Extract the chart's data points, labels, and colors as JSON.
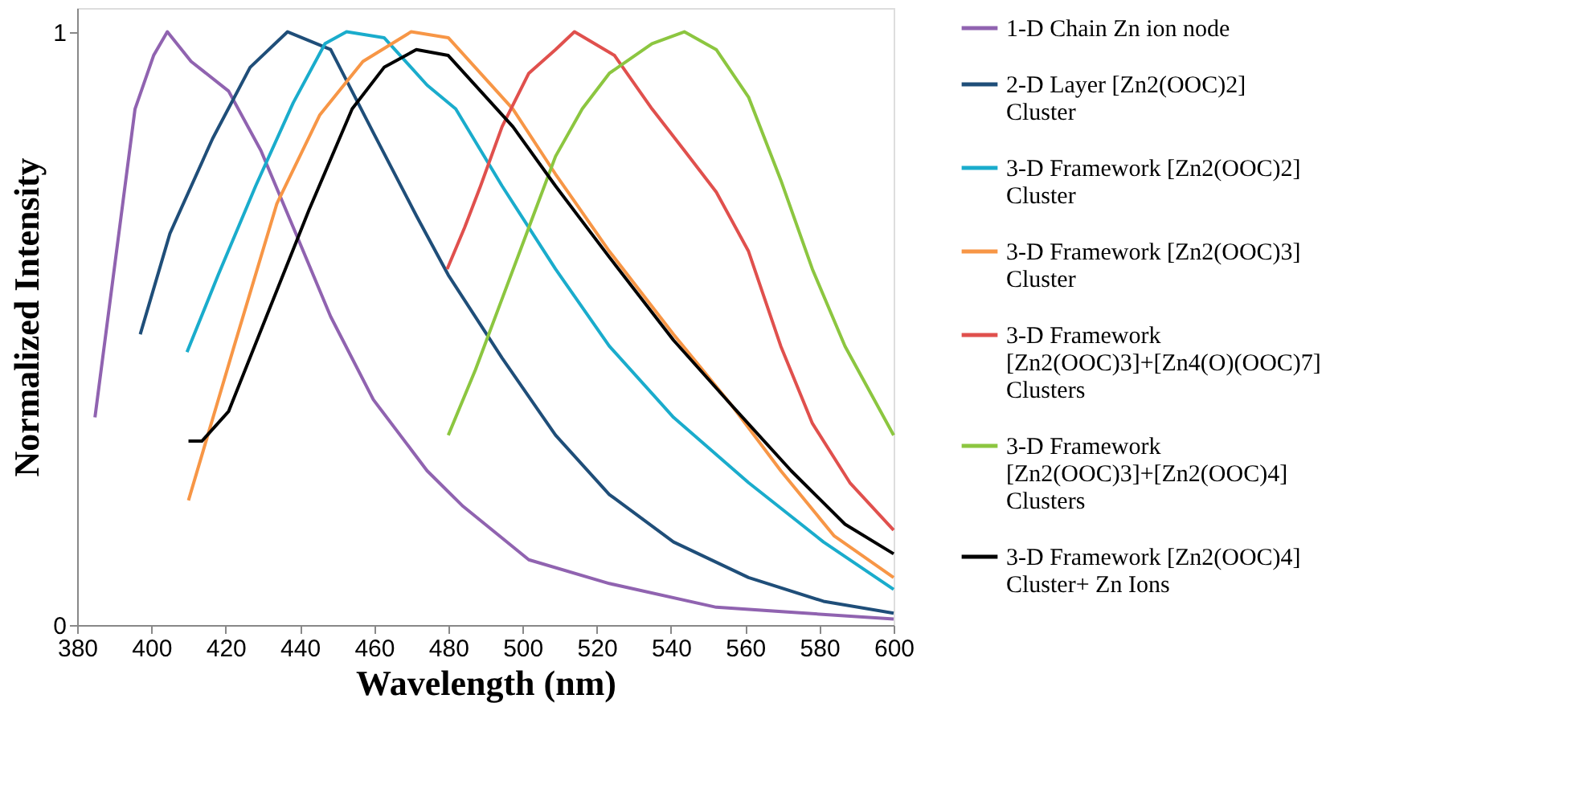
{
  "chart_data": {
    "type": "line",
    "xlabel": "Wavelength (nm)",
    "ylabel": "Normalized Intensity",
    "xlim": [
      380,
      600
    ],
    "xticks": [
      380,
      400,
      420,
      440,
      460,
      480,
      500,
      520,
      540,
      560,
      580,
      600
    ],
    "ylim": [
      0,
      1.04
    ],
    "yticks": [
      0,
      1
    ],
    "grid": false,
    "legend": "right",
    "line_style": "solid",
    "series": [
      {
        "name": "1-D Chain Zn ion node",
        "color": "#9063b0",
        "x": [
          384.8,
          395.6,
          400.6,
          404.3,
          410.7,
          420.8,
          429.5,
          439.6,
          448.3,
          459.8,
          474.3,
          484.0,
          501.7,
          523.4,
          552.2,
          600.0
        ],
        "values": [
          0.35,
          0.87,
          0.96,
          1.0,
          0.95,
          0.9,
          0.8,
          0.65,
          0.52,
          0.38,
          0.26,
          0.2,
          0.11,
          0.07,
          0.03,
          0.01
        ]
      },
      {
        "name": "2-D Layer [Zn2(OOC)2] Cluster",
        "color": "#1f4e79",
        "x": [
          397.0,
          405.0,
          416.5,
          426.6,
          436.7,
          448.3,
          459.8,
          471.4,
          480.0,
          494.5,
          508.9,
          523.4,
          540.7,
          560.9,
          581.1,
          600.0
        ],
        "values": [
          0.49,
          0.66,
          0.82,
          0.94,
          1.0,
          0.97,
          0.83,
          0.69,
          0.59,
          0.45,
          0.32,
          0.22,
          0.14,
          0.08,
          0.04,
          0.02
        ]
      },
      {
        "name": "3-D Framework [Zn2(OOC)2] Cluster",
        "color": "#1aaccc",
        "x": [
          409.6,
          418.0,
          428.1,
          438.2,
          446.8,
          452.6,
          462.7,
          474.3,
          482.0,
          494.5,
          508.9,
          523.4,
          540.7,
          560.9,
          581.1,
          600.0
        ],
        "values": [
          0.46,
          0.59,
          0.74,
          0.88,
          0.98,
          1.0,
          0.99,
          0.91,
          0.87,
          0.74,
          0.6,
          0.47,
          0.35,
          0.24,
          0.14,
          0.06
        ]
      },
      {
        "name": "3-D Framework [Zn2(OOC)3] Cluster",
        "color": "#f79646",
        "x": [
          410.0,
          422.3,
          433.8,
          445.4,
          457.0,
          470.0,
          480.0,
          497.4,
          508.9,
          523.4,
          540.7,
          556.4,
          569.6,
          584.0,
          600.0
        ],
        "values": [
          0.21,
          0.47,
          0.71,
          0.86,
          0.95,
          1.0,
          0.99,
          0.87,
          0.76,
          0.63,
          0.49,
          0.37,
          0.26,
          0.15,
          0.08
        ]
      },
      {
        "name": "3-D Framework [Zn2(OOC)3]+[Zn4(O)(OOC)7] Clusters",
        "color": "#e0504d",
        "x": [
          479.7,
          484.4,
          488.7,
          494.5,
          501.7,
          508.9,
          514.0,
          524.8,
          534.9,
          543.6,
          552.2,
          560.9,
          569.6,
          578.1,
          588.2,
          600.0
        ],
        "values": [
          0.6,
          0.67,
          0.74,
          0.84,
          0.93,
          0.97,
          1.0,
          0.96,
          0.87,
          0.8,
          0.73,
          0.63,
          0.47,
          0.34,
          0.24,
          0.16
        ]
      },
      {
        "name": "3-D Framework [Zn2(OOC)3]+[Zn2(OOC)4] Clusters",
        "color": "#8cc640",
        "x": [
          480.0,
          487.3,
          494.5,
          501.7,
          508.9,
          516.1,
          523.4,
          534.9,
          543.6,
          552.2,
          560.9,
          569.6,
          578.1,
          586.9,
          600.0
        ],
        "values": [
          0.32,
          0.43,
          0.55,
          0.67,
          0.79,
          0.87,
          0.93,
          0.98,
          1.0,
          0.97,
          0.89,
          0.75,
          0.6,
          0.47,
          0.32
        ]
      },
      {
        "name": "3-D Framework [Zn2(OOC)4] Cluster+ Zn Ions",
        "color": "#000000",
        "x": [
          410.0,
          413.6,
          420.8,
          431.0,
          442.5,
          454.1,
          462.7,
          471.4,
          480.0,
          497.4,
          508.9,
          523.4,
          540.7,
          556.4,
          572.4,
          586.9,
          600.0
        ],
        "values": [
          0.31,
          0.31,
          0.36,
          0.52,
          0.7,
          0.87,
          0.94,
          0.97,
          0.96,
          0.84,
          0.74,
          0.62,
          0.48,
          0.37,
          0.26,
          0.17,
          0.12
        ]
      }
    ]
  }
}
